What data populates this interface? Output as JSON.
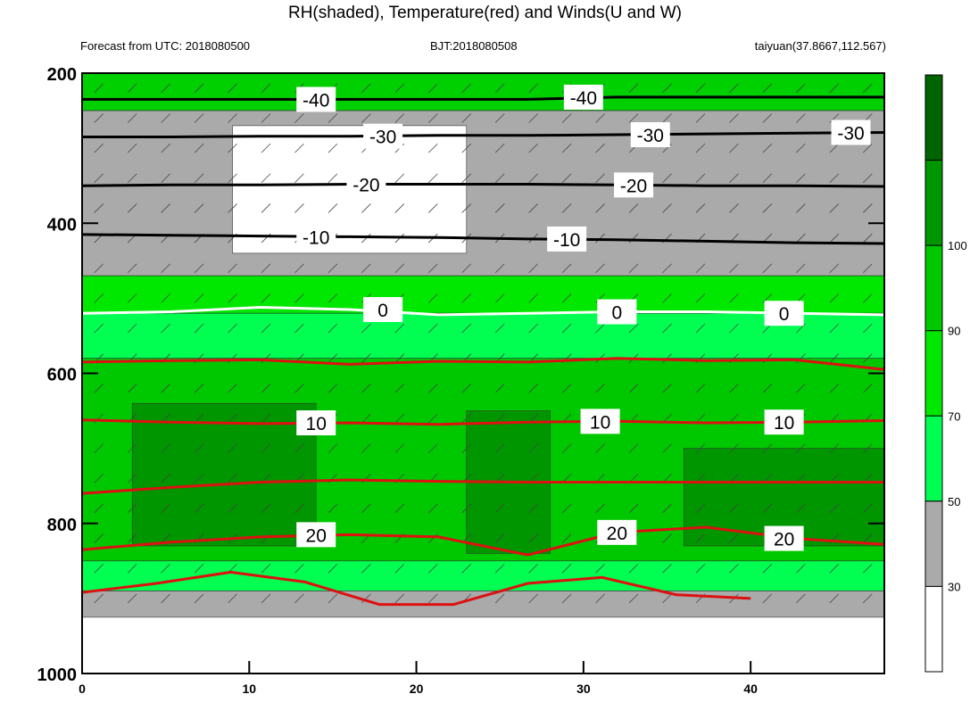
{
  "title": "RH(shaded), Temperature(red) and Winds(U and W)",
  "subtitle_left": "Forecast from UTC: 2018080500",
  "subtitle_center": "BJT:2018080508",
  "subtitle_right": "taiyuan(37.8667,112.567)",
  "chart_data": {
    "type": "heatmap",
    "x_ticks": [
      0,
      10,
      20,
      30,
      40
    ],
    "xlim": [
      0,
      48
    ],
    "y_ticks": [
      200,
      400,
      600,
      800,
      1000
    ],
    "ylim": [
      1000,
      200
    ],
    "colorbar": {
      "levels": [
        30,
        50,
        70,
        90,
        100
      ],
      "colors": [
        "#ffffff",
        "#aaaaaa",
        "#00ff50",
        "#00e800",
        "#00c800",
        "#009600",
        "#006400"
      ]
    },
    "rh_bands": [
      {
        "from": 200,
        "to": 250,
        "color": "#00d000"
      },
      {
        "from": 250,
        "to": 470,
        "color": "#aaaaaa"
      },
      {
        "from": 270,
        "to": 440,
        "color": "#ffffff",
        "x_from": 9,
        "x_to": 23
      },
      {
        "from": 470,
        "to": 520,
        "color": "#00e800"
      },
      {
        "from": 520,
        "to": 580,
        "color": "#00ff50"
      },
      {
        "from": 580,
        "to": 850,
        "color": "#00c800"
      },
      {
        "from": 640,
        "to": 830,
        "color": "#009600",
        "x_from": 3,
        "x_to": 14
      },
      {
        "from": 650,
        "to": 840,
        "color": "#009600",
        "x_from": 23,
        "x_to": 28
      },
      {
        "from": 700,
        "to": 830,
        "color": "#009600",
        "x_from": 36,
        "x_to": 48
      },
      {
        "from": 850,
        "to": 890,
        "color": "#00ff50"
      },
      {
        "from": 890,
        "to": 925,
        "color": "#aaaaaa"
      }
    ],
    "temperature_contours": [
      {
        "value": -40,
        "color": "#000000",
        "y": [
          235,
          235,
          235,
          235,
          235,
          235,
          232,
          232,
          232,
          232
        ],
        "label_x": [
          14,
          30
        ]
      },
      {
        "value": -30,
        "color": "#000000",
        "y": [
          285,
          285,
          284,
          284,
          283,
          283,
          282,
          281,
          280,
          279
        ],
        "label_x": [
          18,
          34,
          46
        ]
      },
      {
        "value": -20,
        "color": "#000000",
        "y": [
          350,
          349,
          349,
          348,
          348,
          348,
          349,
          350,
          350,
          351
        ],
        "label_x": [
          17,
          33
        ]
      },
      {
        "value": -10,
        "color": "#000000",
        "y": [
          415,
          416,
          417,
          418,
          419,
          421,
          422,
          424,
          426,
          427
        ],
        "label_x": [
          14,
          29
        ]
      },
      {
        "value": 0,
        "color": "#ffffff",
        "y": [
          520,
          518,
          512,
          515,
          522,
          520,
          518,
          518,
          520,
          522
        ],
        "label_x": [
          18,
          32,
          42
        ]
      },
      {
        "value": 10,
        "color": "#dd1111",
        "y": [
          662,
          665,
          667,
          666,
          668,
          665,
          664,
          666,
          665,
          663
        ],
        "label_x": [
          14,
          31,
          42
        ]
      },
      {
        "value": 20,
        "color": "#dd1111",
        "y": [
          835,
          825,
          818,
          815,
          818,
          842,
          812,
          805,
          820,
          828
        ],
        "label_x": [
          14,
          32,
          42
        ]
      }
    ],
    "red_isotherms_unlabeled": [
      {
        "y": [
          585,
          583,
          582,
          588,
          584,
          585,
          580,
          583,
          582,
          595
        ]
      },
      {
        "y": [
          760,
          752,
          745,
          742,
          744,
          745,
          745,
          745,
          745,
          745
        ]
      },
      {
        "y": [
          892,
          880,
          865,
          878,
          908,
          908,
          880,
          872,
          895,
          900
        ],
        "x_end": 40
      }
    ]
  }
}
